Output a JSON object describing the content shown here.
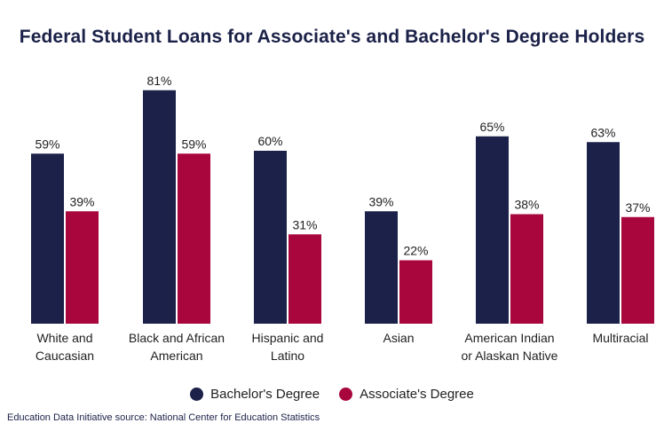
{
  "colors": {
    "bachelors": "#1b2148",
    "associates": "#a8063c",
    "text": "#1f1f1f"
  },
  "chart_data": {
    "type": "bar",
    "title": "Federal Student Loans for Associate's and Bachelor's Degree Holders",
    "categories": [
      [
        "White and",
        "Caucasian"
      ],
      [
        "Black and African",
        "American"
      ],
      [
        "Hispanic and",
        "Latino"
      ],
      [
        "Asian"
      ],
      [
        "American Indian",
        "or Alaskan Native"
      ],
      [
        "Multiracial"
      ]
    ],
    "series": [
      {
        "name": "Bachelor's Degree",
        "values": [
          59,
          81,
          60,
          39,
          65,
          63
        ],
        "labels": [
          "59%",
          "81%",
          "60%",
          "39%",
          "65%",
          "63%"
        ]
      },
      {
        "name": "Associate's Degree",
        "values": [
          39,
          59,
          31,
          22,
          38,
          37
        ],
        "labels": [
          "39%",
          "59%",
          "31%",
          "22%",
          "38%",
          "37%"
        ]
      }
    ],
    "ylim": [
      0,
      100
    ],
    "grid": false,
    "legend_position": "bottom-center"
  },
  "source": "Education Data Initiative source: National Center for Education Statistics"
}
